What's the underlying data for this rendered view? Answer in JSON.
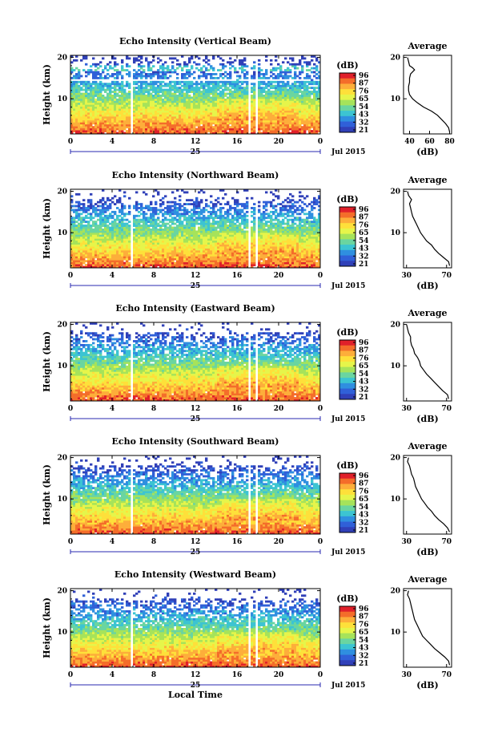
{
  "chart_data": {
    "type": "heatmap",
    "xlabel": "Local Time",
    "date_day": "25",
    "date_month": "Jul 2015",
    "x_ticks": [
      "0",
      "4",
      "8",
      "12",
      "16",
      "20",
      "0"
    ],
    "xlim": [
      0,
      24
    ],
    "ylabel": "Height (km)",
    "y_ticks": [
      "10",
      "20"
    ],
    "ylim": [
      1.5,
      20.5
    ],
    "colorbar": {
      "label": "(dB)",
      "ticks": [
        "96",
        "87",
        "76",
        "65",
        "54",
        "43",
        "32",
        "21"
      ],
      "colors": [
        "#e0202a",
        "#f46d2a",
        "#fdae3a",
        "#fee03a",
        "#e6f54a",
        "#a6e35a",
        "#6ad5a0",
        "#3cc4d2",
        "#2f8fe0",
        "#3060d8",
        "#3040b8"
      ]
    },
    "gaps_local_time": [
      [
        5.8,
        6.1
      ],
      [
        17.0,
        17.3
      ],
      [
        17.7,
        18.0
      ]
    ],
    "average_profile": {
      "title": "Average",
      "xlabel": "(dB)",
      "y_ticks": [
        "10",
        "20"
      ]
    },
    "panels": [
      {
        "title": "Echo Intensity (Vertical Beam)",
        "avg_x_ticks": [
          "40",
          "60",
          "80"
        ],
        "avg_xlim": [
          34,
          82
        ],
        "avg_profile": [
          [
            2,
            80
          ],
          [
            3,
            79
          ],
          [
            4,
            76
          ],
          [
            5,
            72
          ],
          [
            6,
            68
          ],
          [
            7,
            62
          ],
          [
            8,
            54
          ],
          [
            9,
            48
          ],
          [
            10,
            43
          ],
          [
            11,
            40
          ],
          [
            12,
            39
          ],
          [
            13,
            39
          ],
          [
            14,
            40
          ],
          [
            15,
            40
          ],
          [
            16,
            41
          ],
          [
            17,
            45
          ],
          [
            17.5,
            43
          ],
          [
            18,
            40
          ],
          [
            19,
            39
          ],
          [
            20,
            38
          ]
        ]
      },
      {
        "title": "Echo Intensity (Northward Beam)",
        "avg_x_ticks": [
          "30",
          "70"
        ],
        "avg_xlim": [
          27,
          75
        ],
        "avg_profile": [
          [
            2,
            73
          ],
          [
            3,
            72
          ],
          [
            4,
            67
          ],
          [
            5,
            62
          ],
          [
            6,
            58
          ],
          [
            7,
            55
          ],
          [
            8,
            50
          ],
          [
            9,
            47
          ],
          [
            10,
            44
          ],
          [
            11,
            42
          ],
          [
            12,
            40
          ],
          [
            13,
            38
          ],
          [
            14,
            36
          ],
          [
            15,
            35
          ],
          [
            16,
            34
          ],
          [
            17,
            33
          ],
          [
            18,
            35
          ],
          [
            19,
            32
          ],
          [
            20,
            31
          ]
        ]
      },
      {
        "title": "Echo Intensity (Eastward Beam)",
        "avg_x_ticks": [
          "30",
          "70"
        ],
        "avg_xlim": [
          27,
          75
        ],
        "avg_profile": [
          [
            2,
            72
          ],
          [
            3,
            71
          ],
          [
            4,
            66
          ],
          [
            5,
            62
          ],
          [
            6,
            58
          ],
          [
            7,
            54
          ],
          [
            8,
            50
          ],
          [
            9,
            47
          ],
          [
            10,
            44
          ],
          [
            11,
            43
          ],
          [
            12,
            41
          ],
          [
            13,
            38
          ],
          [
            14,
            37
          ],
          [
            15,
            35
          ],
          [
            16,
            34
          ],
          [
            17,
            34
          ],
          [
            18,
            32
          ],
          [
            19,
            31
          ],
          [
            20,
            30
          ]
        ]
      },
      {
        "title": "Echo Intensity (Southward Beam)",
        "avg_x_ticks": [
          "30",
          "70"
        ],
        "avg_xlim": [
          27,
          75
        ],
        "avg_profile": [
          [
            2,
            73
          ],
          [
            3,
            71
          ],
          [
            4,
            67
          ],
          [
            5,
            62
          ],
          [
            6,
            58
          ],
          [
            7,
            55
          ],
          [
            8,
            51
          ],
          [
            9,
            48
          ],
          [
            10,
            45
          ],
          [
            11,
            43
          ],
          [
            12,
            41
          ],
          [
            13,
            39
          ],
          [
            14,
            38
          ],
          [
            15,
            37
          ],
          [
            16,
            35
          ],
          [
            17,
            34
          ],
          [
            18,
            33
          ],
          [
            19,
            31
          ],
          [
            20,
            32
          ]
        ]
      },
      {
        "title": "Echo Intensity (Westward Beam)",
        "avg_x_ticks": [
          "30",
          "70"
        ],
        "avg_xlim": [
          27,
          75
        ],
        "avg_profile": [
          [
            2,
            73
          ],
          [
            3,
            72
          ],
          [
            4,
            68
          ],
          [
            5,
            63
          ],
          [
            6,
            58
          ],
          [
            7,
            54
          ],
          [
            8,
            50
          ],
          [
            9,
            46
          ],
          [
            10,
            44
          ],
          [
            11,
            42
          ],
          [
            12,
            40
          ],
          [
            13,
            38
          ],
          [
            14,
            37
          ],
          [
            15,
            36
          ],
          [
            16,
            35
          ],
          [
            17,
            34
          ],
          [
            18,
            33
          ],
          [
            19,
            31
          ],
          [
            20,
            32
          ]
        ]
      }
    ]
  }
}
